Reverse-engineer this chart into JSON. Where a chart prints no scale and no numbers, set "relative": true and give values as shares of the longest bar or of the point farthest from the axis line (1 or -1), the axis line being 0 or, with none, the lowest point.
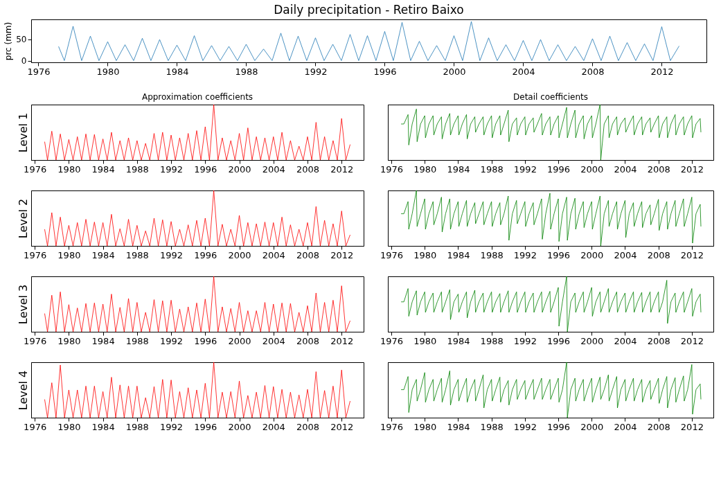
{
  "chart_data": [
    {
      "type": "line",
      "title": "Daily precipitation - Retiro Baixo",
      "ylabel": "prc (mm)",
      "grid": false,
      "xlim": [
        "1975-08",
        "2014-08"
      ],
      "xticks": [
        "1976",
        "1980",
        "1984",
        "1988",
        "1992",
        "1996",
        "2000",
        "2004",
        "2008",
        "2012"
      ],
      "ylim": [
        -4,
        96
      ],
      "yticks": [
        0,
        50
      ],
      "x": [
        "1977-03",
        "1977-07",
        "1978-01",
        "1978-07",
        "1979-01",
        "1979-07",
        "1980-01",
        "1980-07",
        "1981-01",
        "1981-07",
        "1982-01",
        "1982-07",
        "1983-01",
        "1983-07",
        "1984-01",
        "1984-07",
        "1985-01",
        "1985-07",
        "1986-01",
        "1986-07",
        "1987-01",
        "1987-07",
        "1988-01",
        "1988-07",
        "1989-01",
        "1989-07",
        "1990-01",
        "1990-07",
        "1991-01",
        "1991-07",
        "1992-01",
        "1992-07",
        "1993-01",
        "1993-07",
        "1994-01",
        "1994-07",
        "1995-01",
        "1995-07",
        "1996-01",
        "1996-07",
        "1997-01",
        "1997-07",
        "1998-01",
        "1998-07",
        "1999-01",
        "1999-07",
        "2000-01",
        "2000-07",
        "2001-01",
        "2001-07",
        "2002-01",
        "2002-07",
        "2003-01",
        "2003-07",
        "2004-01",
        "2004-07",
        "2005-01",
        "2005-07",
        "2006-01",
        "2006-07",
        "2007-01",
        "2007-07",
        "2008-01",
        "2008-07",
        "2009-01",
        "2009-07",
        "2010-01",
        "2010-07",
        "2011-01",
        "2011-07",
        "2012-01",
        "2012-07",
        "2013-01"
      ],
      "series": [
        {
          "color": "#1f77b4",
          "values": [
            33,
            0,
            80,
            0,
            57,
            0,
            44,
            0,
            37,
            0,
            52,
            0,
            49,
            0,
            36,
            0,
            58,
            0,
            35,
            0,
            33,
            0,
            38,
            0,
            27,
            0,
            64,
            0,
            57,
            0,
            53,
            0,
            38,
            0,
            61,
            0,
            58,
            0,
            68,
            0,
            89,
            0,
            45,
            0,
            35,
            0,
            58,
            0,
            91,
            0,
            53,
            0,
            37,
            0,
            47,
            0,
            49,
            0,
            37,
            0,
            33,
            0,
            51,
            0,
            57,
            0,
            42,
            0,
            39,
            0,
            79,
            0,
            34
          ]
        }
      ]
    },
    {
      "type": "line",
      "title": "Approximation coefficients",
      "ylabel": "Level 1",
      "relative": true,
      "grid": false,
      "xlim": [
        "1975-08",
        "2014-08"
      ],
      "xticks": [
        "1976",
        "1980",
        "1984",
        "1988",
        "1992",
        "1996",
        "2000",
        "2004",
        "2008",
        "2012"
      ],
      "x": [
        "1977-03",
        "1977-07",
        "1978-01",
        "1978-07",
        "1979-01",
        "1979-07",
        "1980-01",
        "1980-07",
        "1981-01",
        "1981-07",
        "1982-01",
        "1982-07",
        "1983-01",
        "1983-07",
        "1984-01",
        "1984-07",
        "1985-01",
        "1985-07",
        "1986-01",
        "1986-07",
        "1987-01",
        "1987-07",
        "1988-01",
        "1988-07",
        "1989-01",
        "1989-07",
        "1990-01",
        "1990-07",
        "1991-01",
        "1991-07",
        "1992-01",
        "1992-07",
        "1993-01",
        "1993-07",
        "1994-01",
        "1994-07",
        "1995-01",
        "1995-07",
        "1996-01",
        "1996-07",
        "1997-01",
        "1997-07",
        "1998-01",
        "1998-07",
        "1999-01",
        "1999-07",
        "2000-01",
        "2000-07",
        "2001-01",
        "2001-07",
        "2002-01",
        "2002-07",
        "2003-01",
        "2003-07",
        "2004-01",
        "2004-07",
        "2005-01",
        "2005-07",
        "2006-01",
        "2006-07",
        "2007-01",
        "2007-07",
        "2008-01",
        "2008-07",
        "2009-01",
        "2009-07",
        "2010-01",
        "2010-07",
        "2011-01",
        "2011-07",
        "2012-01",
        "2012-07",
        "2013-01"
      ],
      "series": [
        {
          "color": "#ff0000",
          "values": [
            0.33,
            0,
            0.52,
            0,
            0.47,
            0,
            0.37,
            0,
            0.42,
            0,
            0.47,
            0,
            0.46,
            0,
            0.38,
            0,
            0.5,
            0,
            0.35,
            0,
            0.4,
            0,
            0.35,
            0,
            0.3,
            0,
            0.48,
            0,
            0.5,
            0,
            0.45,
            0,
            0.4,
            0,
            0.48,
            0,
            0.53,
            0,
            0.6,
            0,
            1,
            0,
            0.4,
            0,
            0.35,
            0,
            0.48,
            0,
            0.58,
            0,
            0.42,
            0,
            0.4,
            0,
            0.42,
            0,
            0.5,
            0,
            0.35,
            0,
            0.25,
            0,
            0.42,
            0,
            0.68,
            0,
            0.42,
            0,
            0.35,
            0,
            0.75,
            0,
            0.28
          ]
        }
      ]
    },
    {
      "type": "line",
      "title": "Detail coefficients",
      "relative": true,
      "grid": false,
      "xlim": [
        "1975-08",
        "2014-08"
      ],
      "xticks": [
        "1976",
        "1980",
        "1984",
        "1988",
        "1992",
        "1996",
        "2000",
        "2004",
        "2008",
        "2012"
      ],
      "x": [
        "1977-03",
        "1977-07",
        "1978-01",
        "1978-02",
        "1978-07",
        "1979-01",
        "1979-02",
        "1979-07",
        "1980-01",
        "1980-02",
        "1980-07",
        "1981-01",
        "1981-02",
        "1981-07",
        "1982-01",
        "1982-02",
        "1982-07",
        "1983-01",
        "1983-02",
        "1983-07",
        "1984-01",
        "1984-02",
        "1984-07",
        "1985-01",
        "1985-02",
        "1985-07",
        "1986-01",
        "1986-02",
        "1986-07",
        "1987-01",
        "1987-02",
        "1987-07",
        "1988-01",
        "1988-02",
        "1988-07",
        "1989-01",
        "1989-02",
        "1989-07",
        "1990-01",
        "1990-02",
        "1990-07",
        "1991-01",
        "1991-02",
        "1991-07",
        "1992-01",
        "1992-02",
        "1992-07",
        "1993-01",
        "1993-02",
        "1993-07",
        "1994-01",
        "1994-02",
        "1994-07",
        "1995-01",
        "1995-02",
        "1995-07",
        "1996-01",
        "1996-02",
        "1996-07",
        "1997-01",
        "1997-02",
        "1997-07",
        "1998-01",
        "1998-02",
        "1998-07",
        "1999-01",
        "1999-02",
        "1999-07",
        "2000-01",
        "2000-02",
        "2000-07",
        "2001-01",
        "2001-02",
        "2001-07",
        "2002-01",
        "2002-02",
        "2002-07",
        "2003-01",
        "2003-02",
        "2003-07",
        "2004-01",
        "2004-02",
        "2004-07",
        "2005-01",
        "2005-02",
        "2005-07",
        "2006-01",
        "2006-02",
        "2006-07",
        "2007-01",
        "2007-02",
        "2007-07",
        "2008-01",
        "2008-02",
        "2008-07",
        "2009-01",
        "2009-02",
        "2009-07",
        "2010-01",
        "2010-02",
        "2010-07",
        "2011-01",
        "2011-02",
        "2011-07",
        "2012-01",
        "2012-02",
        "2012-07",
        "2013-01",
        "2013-02"
      ],
      "series": [
        {
          "color": "#008000",
          "values": [
            0.65,
            0.65,
            0.82,
            0.27,
            0.65,
            0.92,
            0.33,
            0.65,
            0.8,
            0.4,
            0.65,
            0.8,
            0.45,
            0.65,
            0.78,
            0.38,
            0.65,
            0.84,
            0.45,
            0.65,
            0.8,
            0.45,
            0.65,
            0.82,
            0.38,
            0.65,
            0.78,
            0.5,
            0.65,
            0.78,
            0.45,
            0.65,
            0.8,
            0.4,
            0.65,
            0.8,
            0.45,
            0.65,
            0.9,
            0.33,
            0.65,
            0.76,
            0.45,
            0.65,
            0.78,
            0.45,
            0.65,
            0.76,
            0.5,
            0.65,
            0.84,
            0.45,
            0.65,
            0.78,
            0.45,
            0.65,
            0.8,
            0.4,
            0.65,
            0.95,
            0.4,
            0.65,
            0.9,
            0.4,
            0.65,
            0.8,
            0.38,
            0.65,
            0.8,
            0.4,
            0.65,
            1,
            0,
            0.65,
            0.8,
            0.4,
            0.65,
            0.78,
            0.45,
            0.65,
            0.76,
            0.5,
            0.65,
            0.8,
            0.45,
            0.65,
            0.78,
            0.45,
            0.65,
            0.76,
            0.5,
            0.65,
            0.8,
            0.4,
            0.65,
            0.78,
            0.4,
            0.65,
            0.82,
            0.45,
            0.65,
            0.78,
            0.45,
            0.65,
            0.8,
            0.4,
            0.65,
            0.75,
            0.5
          ]
        }
      ]
    },
    {
      "type": "line",
      "ylabel": "Level 2",
      "relative": true,
      "grid": false,
      "xlim": [
        "1975-08",
        "2014-08"
      ],
      "xticks": [
        "1976",
        "1980",
        "1984",
        "1988",
        "1992",
        "1996",
        "2000",
        "2004",
        "2008",
        "2012"
      ],
      "x": [
        "1977-03",
        "1977-07",
        "1978-01",
        "1978-07",
        "1979-01",
        "1979-07",
        "1980-01",
        "1980-07",
        "1981-01",
        "1981-07",
        "1982-01",
        "1982-07",
        "1983-01",
        "1983-07",
        "1984-01",
        "1984-07",
        "1985-01",
        "1985-07",
        "1986-01",
        "1986-07",
        "1987-01",
        "1987-07",
        "1988-01",
        "1988-07",
        "1989-01",
        "1989-07",
        "1990-01",
        "1990-07",
        "1991-01",
        "1991-07",
        "1992-01",
        "1992-07",
        "1993-01",
        "1993-07",
        "1994-01",
        "1994-07",
        "1995-01",
        "1995-07",
        "1996-01",
        "1996-07",
        "1997-01",
        "1997-07",
        "1998-01",
        "1998-07",
        "1999-01",
        "1999-07",
        "2000-01",
        "2000-07",
        "2001-01",
        "2001-07",
        "2002-01",
        "2002-07",
        "2003-01",
        "2003-07",
        "2004-01",
        "2004-07",
        "2005-01",
        "2005-07",
        "2006-01",
        "2006-07",
        "2007-01",
        "2007-07",
        "2008-01",
        "2008-07",
        "2009-01",
        "2009-07",
        "2010-01",
        "2010-07",
        "2011-01",
        "2011-07",
        "2012-01",
        "2012-07",
        "2013-01"
      ],
      "series": [
        {
          "color": "#ff0000",
          "values": [
            0.3,
            0,
            0.6,
            0,
            0.52,
            0,
            0.37,
            0,
            0.42,
            0,
            0.48,
            0,
            0.43,
            0,
            0.42,
            0,
            0.57,
            0,
            0.31,
            0,
            0.48,
            0,
            0.37,
            0,
            0.27,
            0,
            0.5,
            0,
            0.47,
            0,
            0.44,
            0,
            0.3,
            0,
            0.38,
            0,
            0.46,
            0,
            0.5,
            0,
            1,
            0,
            0.39,
            0,
            0.3,
            0,
            0.55,
            0,
            0.42,
            0,
            0.4,
            0,
            0.43,
            0,
            0.42,
            0,
            0.52,
            0,
            0.38,
            0,
            0.3,
            0,
            0.42,
            0,
            0.71,
            0,
            0.46,
            0,
            0.4,
            0,
            0.63,
            0,
            0.2
          ]
        }
      ]
    },
    {
      "type": "line",
      "relative": true,
      "grid": false,
      "xlim": [
        "1975-08",
        "2014-08"
      ],
      "xticks": [
        "1976",
        "1980",
        "1984",
        "1988",
        "1992",
        "1996",
        "2000",
        "2004",
        "2008",
        "2012"
      ],
      "x": [
        "1977-03",
        "1977-07",
        "1978-01",
        "1978-02",
        "1978-07",
        "1979-01",
        "1979-02",
        "1979-07",
        "1980-01",
        "1980-02",
        "1980-07",
        "1981-01",
        "1981-02",
        "1981-07",
        "1982-01",
        "1982-02",
        "1982-07",
        "1983-01",
        "1983-02",
        "1983-07",
        "1984-01",
        "1984-02",
        "1984-07",
        "1985-01",
        "1985-02",
        "1985-07",
        "1986-01",
        "1986-02",
        "1986-07",
        "1987-01",
        "1987-02",
        "1987-07",
        "1988-01",
        "1988-02",
        "1988-07",
        "1989-01",
        "1989-02",
        "1989-07",
        "1990-01",
        "1990-02",
        "1990-07",
        "1991-01",
        "1991-02",
        "1991-07",
        "1992-01",
        "1992-02",
        "1992-07",
        "1993-01",
        "1993-02",
        "1993-07",
        "1994-01",
        "1994-02",
        "1994-07",
        "1995-01",
        "1995-02",
        "1995-07",
        "1996-01",
        "1996-02",
        "1996-07",
        "1997-01",
        "1997-02",
        "1997-07",
        "1998-01",
        "1998-02",
        "1998-07",
        "1999-01",
        "1999-02",
        "1999-07",
        "2000-01",
        "2000-02",
        "2000-07",
        "2001-01",
        "2001-02",
        "2001-07",
        "2002-01",
        "2002-02",
        "2002-07",
        "2003-01",
        "2003-02",
        "2003-07",
        "2004-01",
        "2004-02",
        "2004-07",
        "2005-01",
        "2005-02",
        "2005-07",
        "2006-01",
        "2006-02",
        "2006-07",
        "2007-01",
        "2007-02",
        "2007-07",
        "2008-01",
        "2008-02",
        "2008-07",
        "2009-01",
        "2009-02",
        "2009-07",
        "2010-01",
        "2010-02",
        "2010-07",
        "2011-01",
        "2011-02",
        "2011-07",
        "2012-01",
        "2012-02",
        "2012-07",
        "2013-01",
        "2013-02"
      ],
      "series": [
        {
          "color": "#008000",
          "values": [
            0.58,
            0.58,
            0.8,
            0.3,
            0.58,
            1,
            0.35,
            0.58,
            0.85,
            0.3,
            0.58,
            0.8,
            0.38,
            0.58,
            0.88,
            0.25,
            0.58,
            0.85,
            0.3,
            0.58,
            0.8,
            0.35,
            0.58,
            0.82,
            0.35,
            0.58,
            0.78,
            0.4,
            0.58,
            0.8,
            0.38,
            0.58,
            0.8,
            0.35,
            0.58,
            0.78,
            0.38,
            0.58,
            0.9,
            0.1,
            0.58,
            0.82,
            0.4,
            0.58,
            0.8,
            0.35,
            0.58,
            0.78,
            0.38,
            0.58,
            0.85,
            0.12,
            0.58,
            0.95,
            0.3,
            0.58,
            0.85,
            0.08,
            0.58,
            0.88,
            0.1,
            0.58,
            0.86,
            0.3,
            0.58,
            0.8,
            0.33,
            0.58,
            0.8,
            0.3,
            0.58,
            0.9,
            0,
            0.58,
            0.82,
            0.35,
            0.58,
            0.8,
            0.3,
            0.58,
            0.82,
            0.15,
            0.58,
            0.78,
            0.35,
            0.58,
            0.8,
            0.33,
            0.58,
            0.74,
            0.38,
            0.58,
            0.84,
            0.28,
            0.58,
            0.8,
            0.3,
            0.58,
            0.82,
            0.35,
            0.58,
            0.85,
            0.35,
            0.58,
            0.88,
            0.05,
            0.58,
            0.75,
            0.35
          ]
        }
      ]
    },
    {
      "type": "line",
      "ylabel": "Level 3",
      "relative": true,
      "grid": false,
      "xlim": [
        "1975-08",
        "2014-08"
      ],
      "xticks": [
        "1976",
        "1980",
        "1984",
        "1988",
        "1992",
        "1996",
        "2000",
        "2004",
        "2008",
        "2012"
      ],
      "x": [
        "1977-03",
        "1977-07",
        "1978-01",
        "1978-07",
        "1979-01",
        "1979-07",
        "1980-01",
        "1980-07",
        "1981-01",
        "1981-07",
        "1982-01",
        "1982-07",
        "1983-01",
        "1983-07",
        "1984-01",
        "1984-07",
        "1985-01",
        "1985-07",
        "1986-01",
        "1986-07",
        "1987-01",
        "1987-07",
        "1988-01",
        "1988-07",
        "1989-01",
        "1989-07",
        "1990-01",
        "1990-07",
        "1991-01",
        "1991-07",
        "1992-01",
        "1992-07",
        "1993-01",
        "1993-07",
        "1994-01",
        "1994-07",
        "1995-01",
        "1995-07",
        "1996-01",
        "1996-07",
        "1997-01",
        "1997-07",
        "1998-01",
        "1998-07",
        "1999-01",
        "1999-07",
        "2000-01",
        "2000-07",
        "2001-01",
        "2001-07",
        "2002-01",
        "2002-07",
        "2003-01",
        "2003-07",
        "2004-01",
        "2004-07",
        "2005-01",
        "2005-07",
        "2006-01",
        "2006-07",
        "2007-01",
        "2007-07",
        "2008-01",
        "2008-07",
        "2009-01",
        "2009-07",
        "2010-01",
        "2010-07",
        "2011-01",
        "2011-07",
        "2012-01",
        "2012-07",
        "2013-01"
      ],
      "series": [
        {
          "color": "#ff0000",
          "values": [
            0.33,
            0,
            0.66,
            0,
            0.72,
            0,
            0.49,
            0,
            0.43,
            0,
            0.51,
            0,
            0.52,
            0,
            0.5,
            0,
            0.68,
            0,
            0.44,
            0,
            0.6,
            0,
            0.53,
            0,
            0.35,
            0,
            0.58,
            0,
            0.56,
            0,
            0.57,
            0,
            0.41,
            0,
            0.45,
            0,
            0.52,
            0,
            0.59,
            0,
            1,
            0,
            0.45,
            0,
            0.42,
            0,
            0.53,
            0,
            0.38,
            0,
            0.38,
            0,
            0.53,
            0,
            0.5,
            0,
            0.52,
            0,
            0.51,
            0,
            0.35,
            0,
            0.47,
            0,
            0.7,
            0,
            0.53,
            0,
            0.57,
            0,
            0.83,
            0,
            0.2
          ]
        }
      ]
    },
    {
      "type": "line",
      "relative": true,
      "grid": false,
      "xlim": [
        "1975-08",
        "2014-08"
      ],
      "xticks": [
        "1976",
        "1980",
        "1984",
        "1988",
        "1992",
        "1996",
        "2000",
        "2004",
        "2008",
        "2012"
      ],
      "x": [
        "1977-03",
        "1977-07",
        "1978-01",
        "1978-02",
        "1978-07",
        "1979-01",
        "1979-02",
        "1979-07",
        "1980-01",
        "1980-02",
        "1980-07",
        "1981-01",
        "1981-02",
        "1981-07",
        "1982-01",
        "1982-02",
        "1982-07",
        "1983-01",
        "1983-02",
        "1983-07",
        "1984-01",
        "1984-02",
        "1984-07",
        "1985-01",
        "1985-02",
        "1985-07",
        "1986-01",
        "1986-02",
        "1986-07",
        "1987-01",
        "1987-02",
        "1987-07",
        "1988-01",
        "1988-02",
        "1988-07",
        "1989-01",
        "1989-02",
        "1989-07",
        "1990-01",
        "1990-02",
        "1990-07",
        "1991-01",
        "1991-02",
        "1991-07",
        "1992-01",
        "1992-02",
        "1992-07",
        "1993-01",
        "1993-02",
        "1993-07",
        "1994-01",
        "1994-02",
        "1994-07",
        "1995-01",
        "1995-02",
        "1995-07",
        "1996-01",
        "1996-02",
        "1996-07",
        "1997-01",
        "1997-02",
        "1997-07",
        "1998-01",
        "1998-02",
        "1998-07",
        "1999-01",
        "1999-02",
        "1999-07",
        "2000-01",
        "2000-02",
        "2000-07",
        "2001-01",
        "2001-02",
        "2001-07",
        "2002-01",
        "2002-02",
        "2002-07",
        "2003-01",
        "2003-02",
        "2003-07",
        "2004-01",
        "2004-02",
        "2004-07",
        "2005-01",
        "2005-02",
        "2005-07",
        "2006-01",
        "2006-02",
        "2006-07",
        "2007-01",
        "2007-02",
        "2007-07",
        "2008-01",
        "2008-02",
        "2008-07",
        "2009-01",
        "2009-02",
        "2009-07",
        "2010-01",
        "2010-02",
        "2010-07",
        "2011-01",
        "2011-02",
        "2011-07",
        "2012-01",
        "2012-02",
        "2012-07",
        "2013-01",
        "2013-02"
      ],
      "series": [
        {
          "color": "#008000",
          "values": [
            0.54,
            0.54,
            0.78,
            0.28,
            0.54,
            0.74,
            0.3,
            0.54,
            0.72,
            0.35,
            0.54,
            0.7,
            0.35,
            0.54,
            0.72,
            0.35,
            0.54,
            0.76,
            0.22,
            0.54,
            0.68,
            0.35,
            0.54,
            0.72,
            0.25,
            0.54,
            0.75,
            0.35,
            0.54,
            0.7,
            0.35,
            0.54,
            0.72,
            0.35,
            0.54,
            0.69,
            0.35,
            0.54,
            0.74,
            0.35,
            0.54,
            0.72,
            0.35,
            0.54,
            0.72,
            0.35,
            0.54,
            0.7,
            0.35,
            0.54,
            0.72,
            0.35,
            0.54,
            0.73,
            0.35,
            0.54,
            0.8,
            0.1,
            0.54,
            1,
            0,
            0.54,
            0.7,
            0.35,
            0.54,
            0.72,
            0.35,
            0.54,
            0.8,
            0.28,
            0.54,
            0.72,
            0.35,
            0.54,
            0.78,
            0.35,
            0.54,
            0.72,
            0.35,
            0.54,
            0.7,
            0.35,
            0.54,
            0.72,
            0.35,
            0.54,
            0.71,
            0.35,
            0.54,
            0.72,
            0.35,
            0.54,
            0.72,
            0.35,
            0.54,
            0.93,
            0.15,
            0.54,
            0.7,
            0.35,
            0.54,
            0.72,
            0.35,
            0.54,
            0.78,
            0.28,
            0.54,
            0.68,
            0.35
          ]
        }
      ]
    },
    {
      "type": "line",
      "ylabel": "Level 4",
      "relative": true,
      "grid": false,
      "xlim": [
        "1975-08",
        "2014-08"
      ],
      "xticks": [
        "1976",
        "1980",
        "1984",
        "1988",
        "1992",
        "1996",
        "2000",
        "2004",
        "2008",
        "2012"
      ],
      "x": [
        "1977-03",
        "1977-07",
        "1978-01",
        "1978-07",
        "1979-01",
        "1979-07",
        "1980-01",
        "1980-07",
        "1981-01",
        "1981-07",
        "1982-01",
        "1982-07",
        "1983-01",
        "1983-07",
        "1984-01",
        "1984-07",
        "1985-01",
        "1985-07",
        "1986-01",
        "1986-07",
        "1987-01",
        "1987-07",
        "1988-01",
        "1988-07",
        "1989-01",
        "1989-07",
        "1990-01",
        "1990-07",
        "1991-01",
        "1991-07",
        "1992-01",
        "1992-07",
        "1993-01",
        "1993-07",
        "1994-01",
        "1994-07",
        "1995-01",
        "1995-07",
        "1996-01",
        "1996-07",
        "1997-01",
        "1997-07",
        "1998-01",
        "1998-07",
        "1999-01",
        "1999-07",
        "2000-01",
        "2000-07",
        "2001-01",
        "2001-07",
        "2002-01",
        "2002-07",
        "2003-01",
        "2003-07",
        "2004-01",
        "2004-07",
        "2005-01",
        "2005-07",
        "2006-01",
        "2006-07",
        "2007-01",
        "2007-07",
        "2008-01",
        "2008-07",
        "2009-01",
        "2009-07",
        "2010-01",
        "2010-07",
        "2011-01",
        "2011-07",
        "2012-01",
        "2012-07",
        "2013-01"
      ],
      "series": [
        {
          "color": "#ff0000",
          "values": [
            0.33,
            0,
            0.63,
            0,
            0.95,
            0,
            0.5,
            0,
            0.5,
            0,
            0.57,
            0,
            0.57,
            0,
            0.47,
            0,
            0.73,
            0,
            0.59,
            0,
            0.57,
            0,
            0.57,
            0,
            0.36,
            0,
            0.56,
            0,
            0.69,
            0,
            0.68,
            0,
            0.47,
            0,
            0.54,
            0,
            0.5,
            0,
            0.62,
            0,
            1,
            0,
            0.46,
            0,
            0.47,
            0,
            0.66,
            0,
            0.4,
            0,
            0.46,
            0,
            0.58,
            0,
            0.56,
            0,
            0.51,
            0,
            0.46,
            0,
            0.41,
            0,
            0.51,
            0,
            0.83,
            0,
            0.49,
            0,
            0.57,
            0,
            0.86,
            0,
            0.3
          ]
        }
      ]
    },
    {
      "type": "line",
      "relative": true,
      "grid": false,
      "xlim": [
        "1975-08",
        "2014-08"
      ],
      "xticks": [
        "1976",
        "1980",
        "1984",
        "1988",
        "1992",
        "1996",
        "2000",
        "2004",
        "2008",
        "2012"
      ],
      "x": [
        "1977-03",
        "1977-07",
        "1978-01",
        "1978-02",
        "1978-07",
        "1979-01",
        "1979-02",
        "1979-07",
        "1980-01",
        "1980-02",
        "1980-07",
        "1981-01",
        "1981-02",
        "1981-07",
        "1982-01",
        "1982-02",
        "1982-07",
        "1983-01",
        "1983-02",
        "1983-07",
        "1984-01",
        "1984-02",
        "1984-07",
        "1985-01",
        "1985-02",
        "1985-07",
        "1986-01",
        "1986-02",
        "1986-07",
        "1987-01",
        "1987-02",
        "1987-07",
        "1988-01",
        "1988-02",
        "1988-07",
        "1989-01",
        "1989-02",
        "1989-07",
        "1990-01",
        "1990-02",
        "1990-07",
        "1991-01",
        "1991-02",
        "1991-07",
        "1992-01",
        "1992-02",
        "1992-07",
        "1993-01",
        "1993-02",
        "1993-07",
        "1994-01",
        "1994-02",
        "1994-07",
        "1995-01",
        "1995-02",
        "1995-07",
        "1996-01",
        "1996-02",
        "1996-07",
        "1997-01",
        "1997-02",
        "1997-07",
        "1998-01",
        "1998-02",
        "1998-07",
        "1999-01",
        "1999-02",
        "1999-07",
        "2000-01",
        "2000-02",
        "2000-07",
        "2001-01",
        "2001-02",
        "2001-07",
        "2002-01",
        "2002-02",
        "2002-07",
        "2003-01",
        "2003-02",
        "2003-07",
        "2004-01",
        "2004-02",
        "2004-07",
        "2005-01",
        "2005-02",
        "2005-07",
        "2006-01",
        "2006-02",
        "2006-07",
        "2007-01",
        "2007-02",
        "2007-07",
        "2008-01",
        "2008-02",
        "2008-07",
        "2009-01",
        "2009-02",
        "2009-07",
        "2010-01",
        "2010-02",
        "2010-07",
        "2011-01",
        "2011-02",
        "2011-07",
        "2012-01",
        "2012-02",
        "2012-07",
        "2013-01",
        "2013-02"
      ],
      "series": [
        {
          "color": "#008000",
          "values": [
            0.52,
            0.52,
            0.75,
            0.12,
            0.52,
            0.7,
            0.32,
            0.52,
            0.82,
            0.3,
            0.52,
            0.7,
            0.32,
            0.52,
            0.72,
            0.3,
            0.52,
            0.85,
            0.25,
            0.52,
            0.7,
            0.32,
            0.52,
            0.72,
            0.3,
            0.52,
            0.7,
            0.32,
            0.52,
            0.78,
            0.2,
            0.52,
            0.7,
            0.32,
            0.52,
            0.74,
            0.3,
            0.52,
            0.68,
            0.25,
            0.52,
            0.7,
            0.35,
            0.52,
            0.68,
            0.35,
            0.52,
            0.7,
            0.35,
            0.52,
            0.72,
            0.35,
            0.52,
            0.7,
            0.35,
            0.52,
            0.72,
            0.3,
            0.52,
            1,
            0.03,
            0.52,
            0.72,
            0.32,
            0.52,
            0.7,
            0.32,
            0.52,
            0.72,
            0.3,
            0.52,
            0.74,
            0.35,
            0.52,
            0.78,
            0.32,
            0.52,
            0.75,
            0.2,
            0.52,
            0.7,
            0.32,
            0.52,
            0.72,
            0.32,
            0.52,
            0.7,
            0.3,
            0.52,
            0.68,
            0.35,
            0.52,
            0.72,
            0.28,
            0.52,
            0.75,
            0.2,
            0.52,
            0.73,
            0.3,
            0.52,
            0.76,
            0.32,
            0.52,
            0.96,
            0.09,
            0.52,
            0.62,
            0.35
          ]
        }
      ]
    }
  ]
}
